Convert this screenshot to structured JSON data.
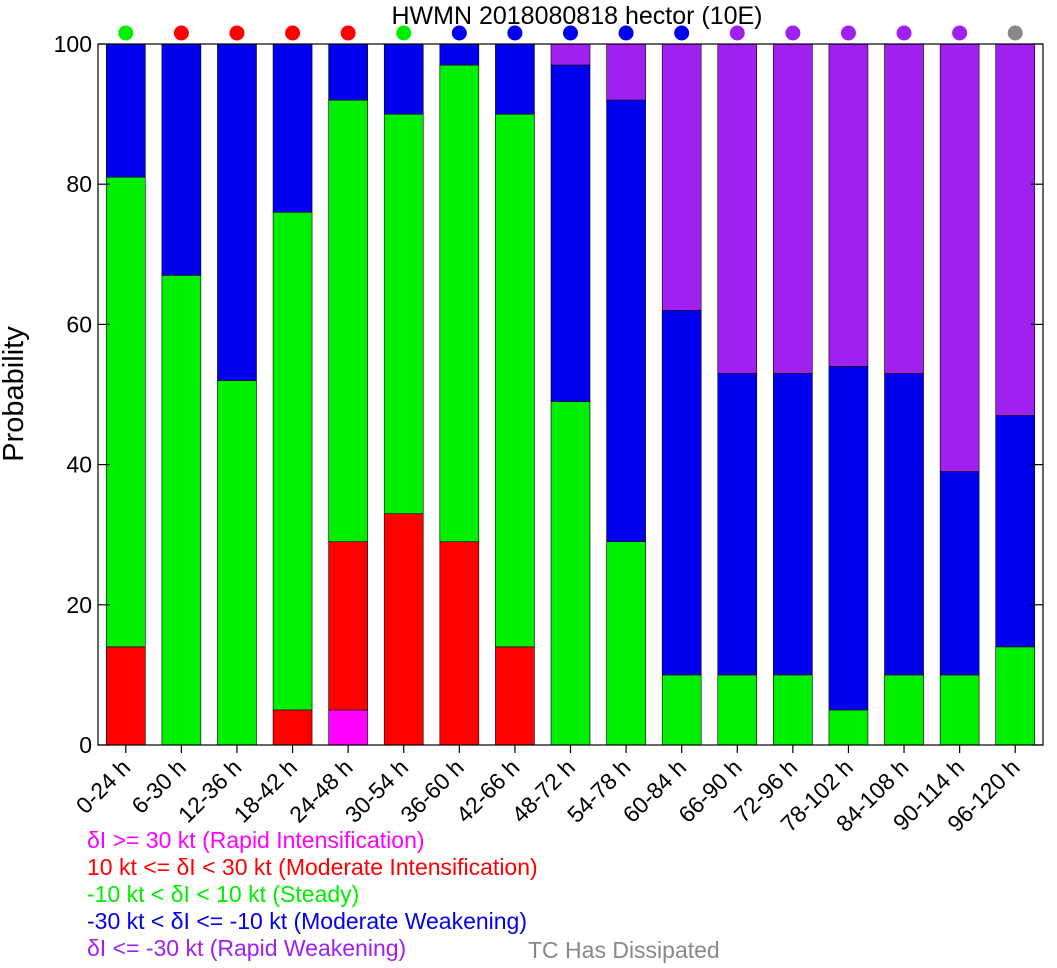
{
  "chart_data": {
    "type": "bar",
    "stacked": true,
    "title": "HWMN 2018080818 hector (10E)",
    "xlabel": "",
    "ylabel": "Probability",
    "ylim": [
      0,
      100
    ],
    "yticks": [
      0,
      20,
      40,
      60,
      80,
      100
    ],
    "grid": false,
    "categories": [
      "0-24 h",
      "6-30 h",
      "12-36 h",
      "18-42 h",
      "24-48 h",
      "30-54 h",
      "36-60 h",
      "42-66 h",
      "48-72 h",
      "54-78 h",
      "60-84 h",
      "66-90 h",
      "72-96 h",
      "78-102 h",
      "84-108 h",
      "90-114 h",
      "96-120 h"
    ],
    "series": [
      {
        "name": "δI >= 30 kt (Rapid Intensification)",
        "color": "#ff00ff",
        "values": [
          0,
          0,
          0,
          0,
          5,
          0,
          0,
          0,
          0,
          0,
          0,
          0,
          0,
          0,
          0,
          0,
          0
        ]
      },
      {
        "name": "10 kt <= δI < 30 kt (Moderate Intensification)",
        "color": "#ff0000",
        "values": [
          14,
          0,
          0,
          5,
          24,
          33,
          29,
          14,
          0,
          0,
          0,
          0,
          0,
          0,
          0,
          0,
          0
        ]
      },
      {
        "name": "-10 kt < δI < 10 kt (Steady)",
        "color": "#00ee00",
        "values": [
          67,
          67,
          52,
          71,
          63,
          57,
          68,
          76,
          49,
          29,
          10,
          10,
          10,
          5,
          10,
          10,
          14
        ]
      },
      {
        "name": "-30 kt < δI <= -10 kt (Moderate Weakening)",
        "color": "#0000ee",
        "values": [
          19,
          33,
          48,
          24,
          8,
          10,
          3,
          10,
          48,
          63,
          52,
          43,
          43,
          49,
          43,
          29,
          33
        ]
      },
      {
        "name": "δI <= -30 kt (Rapid Weakening)",
        "color": "#a020f0",
        "values": [
          0,
          0,
          0,
          0,
          0,
          0,
          0,
          0,
          3,
          8,
          38,
          47,
          47,
          46,
          47,
          61,
          53
        ]
      }
    ],
    "dissipated_label": "TC Has Dissipated",
    "dissipated_color": "#888888",
    "category_markers": [
      "#00ee00",
      "#ff0000",
      "#ff0000",
      "#ff0000",
      "#ff0000",
      "#00ee00",
      "#0000ee",
      "#0000ee",
      "#0000ee",
      "#0000ee",
      "#0000ee",
      "#a020f0",
      "#a020f0",
      "#a020f0",
      "#a020f0",
      "#a020f0",
      "#888888"
    ]
  }
}
